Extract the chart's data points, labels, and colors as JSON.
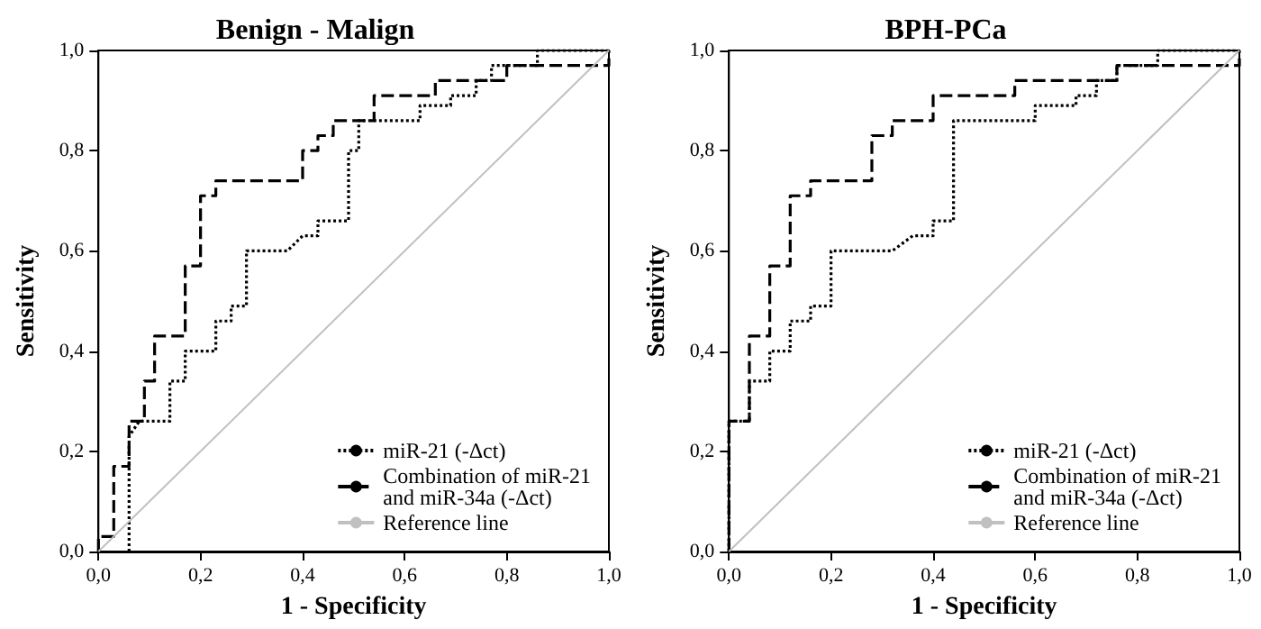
{
  "chart_data": [
    {
      "type": "line",
      "title": "Benign - Malign",
      "xlabel": "1 - Specificity",
      "ylabel": "Sensitivity",
      "xlim": [
        0,
        1
      ],
      "ylim": [
        0,
        1
      ],
      "xticks": [
        {
          "value": 0,
          "label": "0,0"
        },
        {
          "value": 0.2,
          "label": "0,2"
        },
        {
          "value": 0.4,
          "label": "0,4"
        },
        {
          "value": 0.6,
          "label": "0,6"
        },
        {
          "value": 0.8,
          "label": "0,8"
        },
        {
          "value": 1,
          "label": "1,0"
        }
      ],
      "yticks": [
        {
          "value": 0,
          "label": "0,0"
        },
        {
          "value": 0.2,
          "label": "0,2"
        },
        {
          "value": 0.4,
          "label": "0,4"
        },
        {
          "value": 0.6,
          "label": "0,6"
        },
        {
          "value": 0.8,
          "label": "0,8"
        },
        {
          "value": 1,
          "label": "1,0"
        }
      ],
      "grid": false,
      "legend": "bottom right",
      "marker": "none",
      "series": [
        {
          "name": "miR-21 (-Δct)",
          "color": "#000000",
          "line_style": "dotted",
          "x": [
            0.06,
            0.06,
            0.08,
            0.14,
            0.14,
            0.17,
            0.17,
            0.23,
            0.23,
            0.26,
            0.26,
            0.29,
            0.29,
            0.37,
            0.4,
            0.43,
            0.43,
            0.49,
            0.49,
            0.51,
            0.51,
            0.63,
            0.63,
            0.69,
            0.69,
            0.74,
            0.74,
            0.77,
            0.77,
            0.86,
            0.86,
            1
          ],
          "values": [
            0,
            0.23,
            0.26,
            0.26,
            0.34,
            0.34,
            0.4,
            0.4,
            0.46,
            0.46,
            0.49,
            0.49,
            0.6,
            0.6,
            0.63,
            0.63,
            0.66,
            0.66,
            0.8,
            0.8,
            0.86,
            0.86,
            0.89,
            0.89,
            0.91,
            0.91,
            0.94,
            0.94,
            0.97,
            0.97,
            1,
            1
          ]
        },
        {
          "name": "Combination of miR-21 and miR-34a (-Δct)",
          "color": "#000000",
          "line_style": "dashed",
          "x": [
            0,
            0,
            0.03,
            0.03,
            0.06,
            0.06,
            0.09,
            0.09,
            0.11,
            0.11,
            0.17,
            0.17,
            0.2,
            0.2,
            0.23,
            0.23,
            0.4,
            0.4,
            0.43,
            0.43,
            0.46,
            0.46,
            0.54,
            0.54,
            0.66,
            0.66,
            0.8,
            0.8,
            1,
            1
          ],
          "values": [
            0,
            0.03,
            0.03,
            0.17,
            0.17,
            0.26,
            0.26,
            0.34,
            0.34,
            0.43,
            0.43,
            0.57,
            0.57,
            0.71,
            0.71,
            0.74,
            0.74,
            0.8,
            0.8,
            0.83,
            0.83,
            0.86,
            0.86,
            0.91,
            0.91,
            0.94,
            0.94,
            0.97,
            0.97,
            1
          ]
        },
        {
          "name": "Reference line",
          "color": "#c0c0c0",
          "line_style": "solid",
          "x": [
            0,
            1
          ],
          "values": [
            0,
            1
          ]
        }
      ]
    },
    {
      "type": "line",
      "title": "BPH-PCa",
      "xlabel": "1 - Specificity",
      "ylabel": "Sensitivity",
      "xlim": [
        0,
        1
      ],
      "ylim": [
        0,
        1
      ],
      "xticks": [
        {
          "value": 0,
          "label": "0,0"
        },
        {
          "value": 0.2,
          "label": "0,2"
        },
        {
          "value": 0.4,
          "label": "0,4"
        },
        {
          "value": 0.6,
          "label": "0,6"
        },
        {
          "value": 0.8,
          "label": "0,8"
        },
        {
          "value": 1,
          "label": "1,0"
        }
      ],
      "yticks": [
        {
          "value": 0,
          "label": "0,0"
        },
        {
          "value": 0.2,
          "label": "0,2"
        },
        {
          "value": 0.4,
          "label": "0,4"
        },
        {
          "value": 0.6,
          "label": "0,6"
        },
        {
          "value": 0.8,
          "label": "0,8"
        },
        {
          "value": 1,
          "label": "1,0"
        }
      ],
      "grid": false,
      "legend": "bottom right",
      "marker": "none",
      "series": [
        {
          "name": "miR-21 (-Δct)",
          "color": "#000000",
          "line_style": "dotted",
          "x": [
            0,
            0,
            0.04,
            0.04,
            0.08,
            0.08,
            0.12,
            0.12,
            0.16,
            0.16,
            0.2,
            0.2,
            0.32,
            0.36,
            0.4,
            0.4,
            0.44,
            0.44,
            0.6,
            0.6,
            0.68,
            0.68,
            0.72,
            0.72,
            0.76,
            0.76,
            0.84,
            0.84,
            1
          ],
          "values": [
            0,
            0.26,
            0.26,
            0.34,
            0.34,
            0.4,
            0.4,
            0.46,
            0.46,
            0.49,
            0.49,
            0.6,
            0.6,
            0.63,
            0.63,
            0.66,
            0.66,
            0.86,
            0.86,
            0.89,
            0.89,
            0.91,
            0.91,
            0.94,
            0.94,
            0.97,
            0.97,
            1,
            1
          ]
        },
        {
          "name": "Combination of miR-21 and miR-34a (-Δct)",
          "color": "#000000",
          "line_style": "dashed",
          "x": [
            0,
            0,
            0.04,
            0.04,
            0.08,
            0.08,
            0.12,
            0.12,
            0.16,
            0.16,
            0.28,
            0.28,
            0.32,
            0.32,
            0.4,
            0.4,
            0.56,
            0.56,
            0.76,
            0.76,
            1,
            1
          ],
          "values": [
            0,
            0.26,
            0.26,
            0.43,
            0.43,
            0.57,
            0.57,
            0.71,
            0.71,
            0.74,
            0.74,
            0.83,
            0.83,
            0.86,
            0.86,
            0.91,
            0.91,
            0.94,
            0.94,
            0.97,
            0.97,
            1
          ]
        },
        {
          "name": "Reference line",
          "color": "#c0c0c0",
          "line_style": "solid",
          "x": [
            0,
            1
          ],
          "values": [
            0,
            1
          ]
        }
      ]
    }
  ]
}
